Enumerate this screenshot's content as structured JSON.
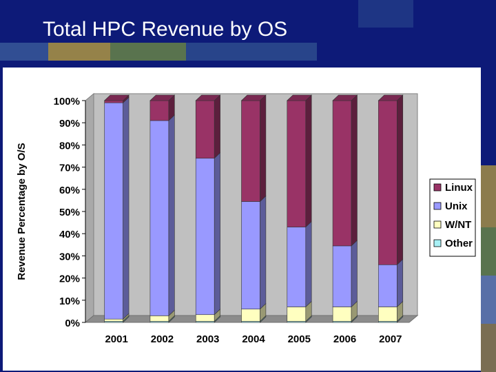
{
  "slide": {
    "title": "Total HPC Revenue by OS",
    "background_color": "#0d1a78",
    "decor_colors": [
      "#3b5b9a",
      "#c3a63a",
      "#7a9a3c",
      "#2f4f8f",
      "#8aa9c7"
    ]
  },
  "chart_data": {
    "type": "bar",
    "stacked": true,
    "three_d": true,
    "title": "",
    "xlabel": "",
    "ylabel": "Revenue Percentage by O/S",
    "ylim": [
      0,
      100
    ],
    "yticks": [
      0,
      10,
      20,
      30,
      40,
      50,
      60,
      70,
      80,
      90,
      100
    ],
    "ytick_format": "%",
    "grid": false,
    "legend_position": "right",
    "categories": [
      "2001",
      "2002",
      "2003",
      "2004",
      "2005",
      "2006",
      "2007"
    ],
    "series": [
      {
        "name": "Other",
        "color": "#a8f0f5",
        "values": [
          0.5,
          0.5,
          0.5,
          0.5,
          0.5,
          0.5,
          0.5
        ]
      },
      {
        "name": "W/NT",
        "color": "#ffffc0",
        "values": [
          1.0,
          2.5,
          3.0,
          5.5,
          6.5,
          6.5,
          6.5
        ]
      },
      {
        "name": "Unix",
        "color": "#9999ff",
        "values": [
          97.5,
          88.0,
          70.5,
          48.5,
          36.0,
          27.5,
          19.0
        ]
      },
      {
        "name": "Linux",
        "color": "#993366",
        "values": [
          1.0,
          9.0,
          26.0,
          45.5,
          57.0,
          65.5,
          74.0
        ]
      }
    ],
    "legend_order": [
      "Linux",
      "Unix",
      "W/NT",
      "Other"
    ]
  }
}
